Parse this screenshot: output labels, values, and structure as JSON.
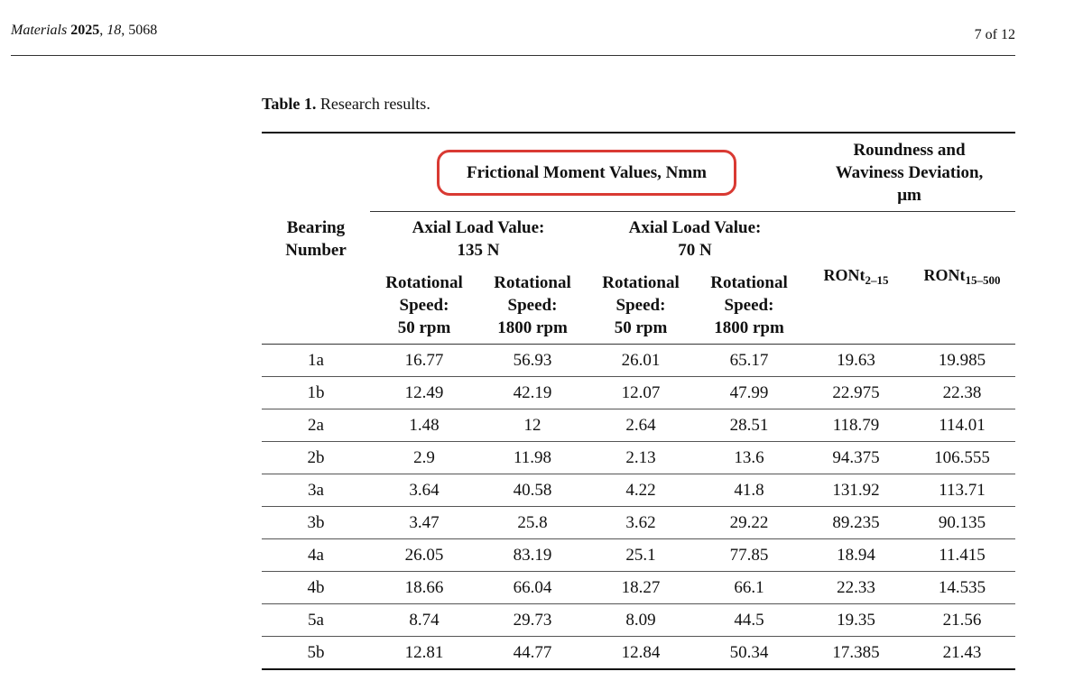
{
  "header": {
    "journal": "Materials",
    "year": "2025",
    "volume": "18",
    "article": ", 5068",
    "page": "7 of 12"
  },
  "caption": {
    "label": "Table 1.",
    "text": "Research results."
  },
  "table": {
    "col_bearing": [
      "Bearing",
      "Number"
    ],
    "group_friction": "Frictional Moment Values, Nmm",
    "group_roundness": [
      "Roundness and",
      "Waviness Deviation,",
      "μm"
    ],
    "load_135": [
      "Axial Load Value:",
      "135 N"
    ],
    "load_70": [
      "Axial Load Value:",
      "70 N"
    ],
    "speed_50": [
      "Rotational",
      "Speed:",
      "50 rpm"
    ],
    "speed_1800": [
      "Rotational",
      "Speed:",
      "1800 rpm"
    ],
    "ront_a": {
      "base": "RONt",
      "sub": "2–15"
    },
    "ront_b": {
      "base": "RONt",
      "sub": "15–500"
    },
    "rows": [
      [
        "1a",
        "16.77",
        "56.93",
        "26.01",
        "65.17",
        "19.63",
        "19.985"
      ],
      [
        "1b",
        "12.49",
        "42.19",
        "12.07",
        "47.99",
        "22.975",
        "22.38"
      ],
      [
        "2a",
        "1.48",
        "12",
        "2.64",
        "28.51",
        "118.79",
        "114.01"
      ],
      [
        "2b",
        "2.9",
        "11.98",
        "2.13",
        "13.6",
        "94.375",
        "106.555"
      ],
      [
        "3a",
        "3.64",
        "40.58",
        "4.22",
        "41.8",
        "131.92",
        "113.71"
      ],
      [
        "3b",
        "3.47",
        "25.8",
        "3.62",
        "29.22",
        "89.235",
        "90.135"
      ],
      [
        "4a",
        "26.05",
        "83.19",
        "25.1",
        "77.85",
        "18.94",
        "11.415"
      ],
      [
        "4b",
        "18.66",
        "66.04",
        "18.27",
        "66.1",
        "22.33",
        "14.535"
      ],
      [
        "5a",
        "8.74",
        "29.73",
        "8.09",
        "44.5",
        "19.35",
        "21.56"
      ],
      [
        "5b",
        "12.81",
        "44.77",
        "12.84",
        "50.34",
        "17.385",
        "21.43"
      ]
    ]
  },
  "annotation_color": "#d93a33"
}
